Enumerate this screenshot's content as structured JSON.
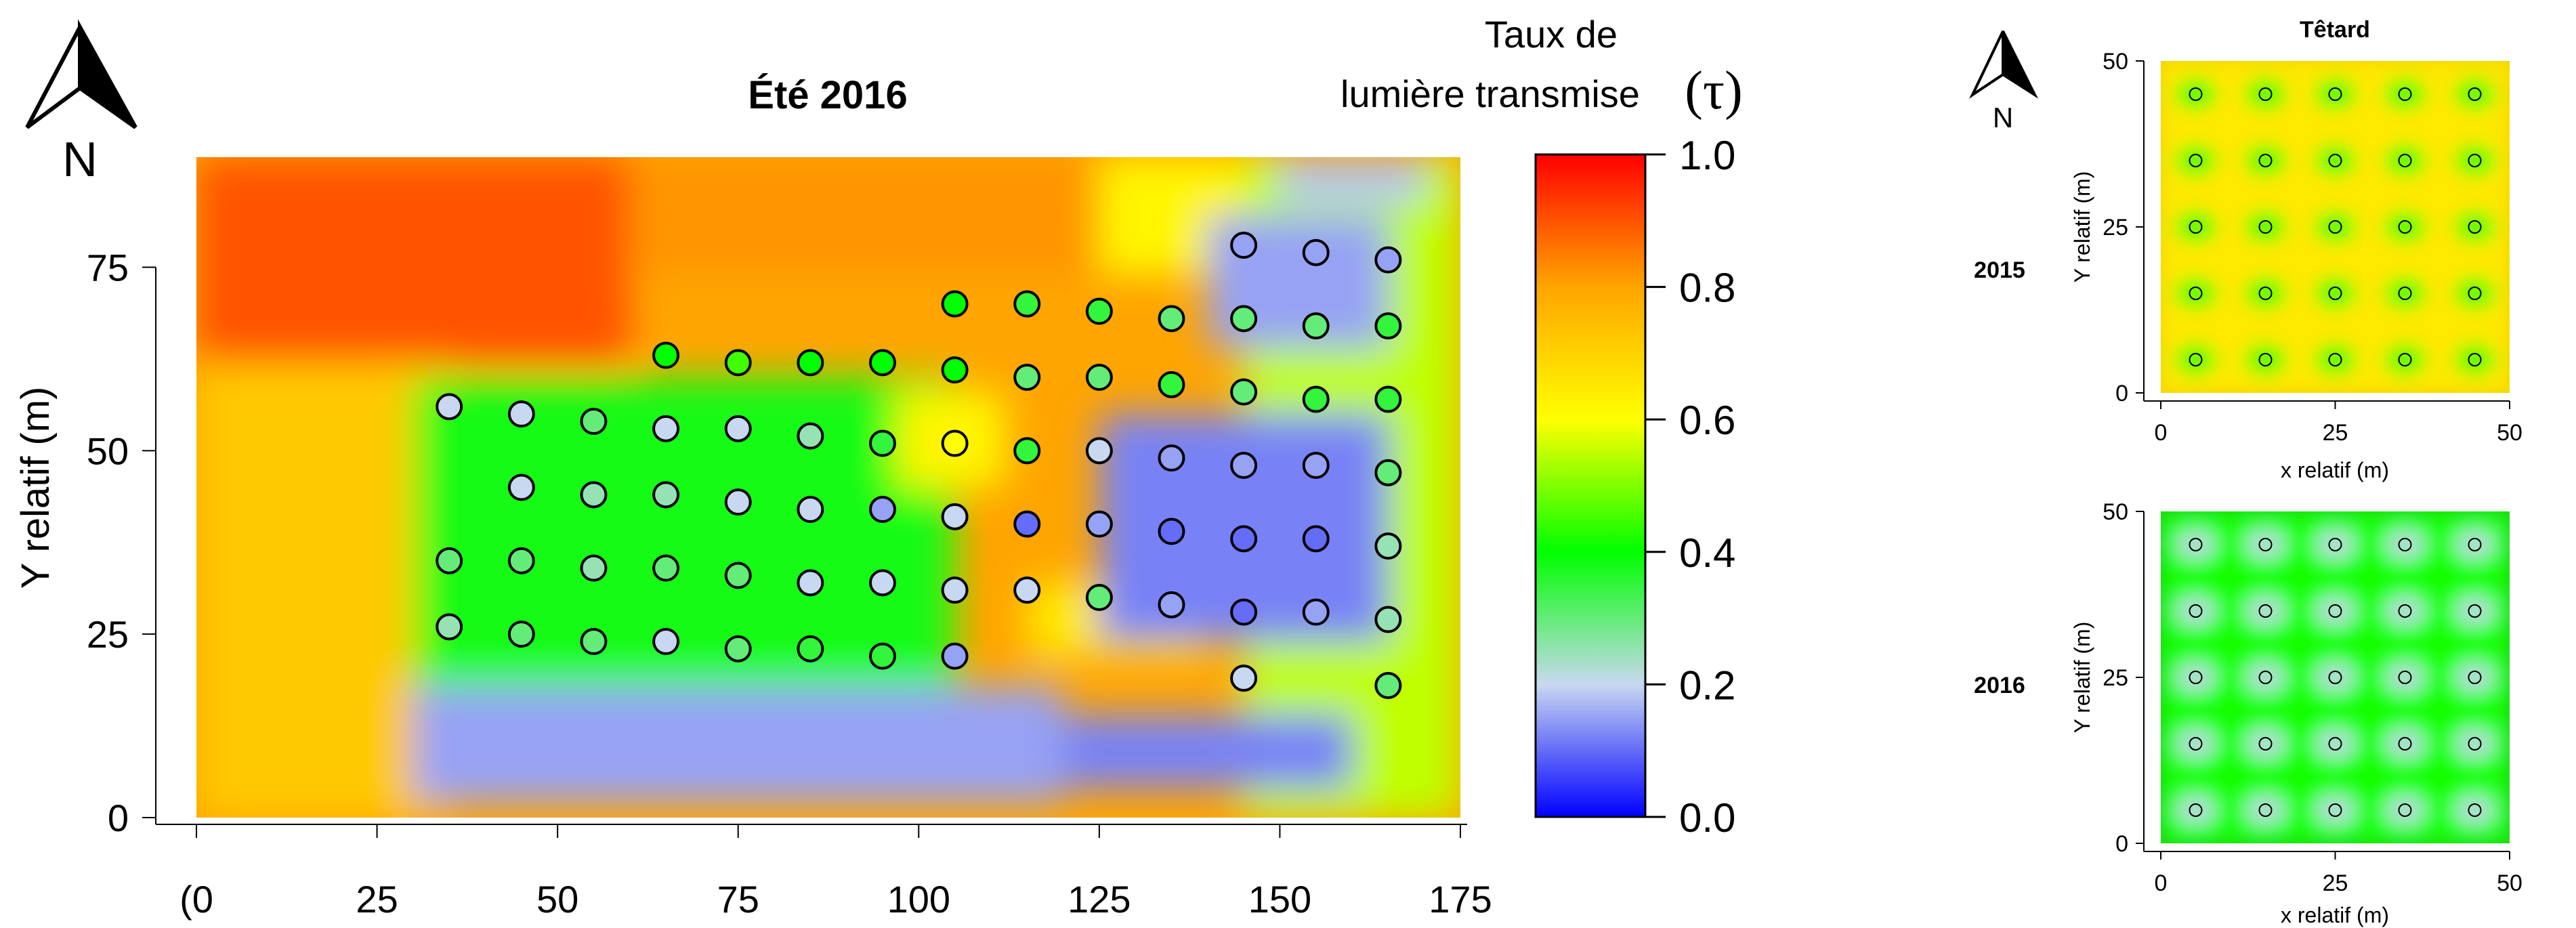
{
  "main": {
    "title": "Été 2016",
    "north_label": "N"
  },
  "colorbar": {
    "title_line1": "Taux de",
    "title_line2": "lumière transmise",
    "symbol": "(τ)",
    "ticks": [
      "0.0",
      "0.2",
      "0.4",
      "0.6",
      "0.8",
      "1.0"
    ],
    "gradient_stops": [
      {
        "value": 0.0,
        "color": "#0000ff"
      },
      {
        "value": 0.2,
        "color": "#c8d8f0"
      },
      {
        "value": 0.4,
        "color": "#00ff00"
      },
      {
        "value": 0.6,
        "color": "#ffff00"
      },
      {
        "value": 0.8,
        "color": "#ffa500"
      },
      {
        "value": 1.0,
        "color": "#ff0000"
      }
    ]
  },
  "side": {
    "north_label": "N",
    "panel_title": "Têtard",
    "row_labels": [
      "2015",
      "2016"
    ]
  },
  "chart_data": [
    {
      "type": "heatmap",
      "title": "Été 2016",
      "xlabel": "",
      "ylabel": "Y relatif (m)",
      "xlim": [
        0,
        175
      ],
      "ylim": [
        0,
        90
      ],
      "x_ticks": [
        "(0",
        "25",
        "50",
        "75",
        "100",
        "125",
        "150",
        "175"
      ],
      "x_tick_values": [
        0,
        25,
        50,
        75,
        100,
        125,
        150,
        175
      ],
      "y_ticks": [
        "0",
        "25",
        "50",
        "75"
      ],
      "y_tick_values": [
        0,
        25,
        50,
        75
      ],
      "color_scale": {
        "min": 0.0,
        "max": 1.0,
        "label": "Taux de lumière transmise (τ)"
      },
      "zones": [
        {
          "x": [
            0,
            60
          ],
          "y": [
            62,
            90
          ],
          "tau": 0.9
        },
        {
          "x": [
            60,
            125
          ],
          "y": [
            74,
            90
          ],
          "tau": 0.82
        },
        {
          "x": [
            125,
            145
          ],
          "y": [
            74,
            90
          ],
          "tau": 0.62
        },
        {
          "x": [
            145,
            175
          ],
          "y": [
            0,
            90
          ],
          "tau": 0.55
        },
        {
          "x": [
            0,
            35
          ],
          "y": [
            0,
            62
          ],
          "tau": 0.72
        },
        {
          "x": [
            30,
            105
          ],
          "y": [
            14,
            60
          ],
          "tau": 0.38
        },
        {
          "x": [
            97,
            112
          ],
          "y": [
            45,
            58
          ],
          "tau": 0.62
        },
        {
          "x": [
            115,
            140
          ],
          "y": [
            22,
            32
          ],
          "tau": 0.65
        },
        {
          "x": [
            125,
            165
          ],
          "y": [
            24,
            55
          ],
          "tau": 0.12
        },
        {
          "x": [
            140,
            165
          ],
          "y": [
            64,
            82
          ],
          "tau": 0.15
        },
        {
          "x": [
            150,
            170
          ],
          "y": [
            84,
            90
          ],
          "tau": 0.18
        },
        {
          "x": [
            30,
            120
          ],
          "y": [
            2,
            18
          ],
          "tau": 0.15
        },
        {
          "x": [
            120,
            160
          ],
          "y": [
            4,
            14
          ],
          "tau": 0.12
        }
      ],
      "trees": [
        {
          "x": 35,
          "y": 56,
          "tau": 0.2
        },
        {
          "x": 45,
          "y": 55,
          "tau": 0.2
        },
        {
          "x": 55,
          "y": 54,
          "tau": 0.3
        },
        {
          "x": 65,
          "y": 53,
          "tau": 0.2
        },
        {
          "x": 75,
          "y": 53,
          "tau": 0.2
        },
        {
          "x": 85,
          "y": 52,
          "tau": 0.25
        },
        {
          "x": 95,
          "y": 51,
          "tau": 0.35
        },
        {
          "x": 105,
          "y": 51,
          "tau": 0.6
        },
        {
          "x": 115,
          "y": 50,
          "tau": 0.35
        },
        {
          "x": 125,
          "y": 50,
          "tau": 0.2
        },
        {
          "x": 135,
          "y": 49,
          "tau": 0.15
        },
        {
          "x": 145,
          "y": 48,
          "tau": 0.15
        },
        {
          "x": 155,
          "y": 48,
          "tau": 0.15
        },
        {
          "x": 165,
          "y": 47,
          "tau": 0.3
        },
        {
          "x": 45,
          "y": 45,
          "tau": 0.2
        },
        {
          "x": 55,
          "y": 44,
          "tau": 0.25
        },
        {
          "x": 65,
          "y": 44,
          "tau": 0.25
        },
        {
          "x": 75,
          "y": 43,
          "tau": 0.2
        },
        {
          "x": 85,
          "y": 42,
          "tau": 0.2
        },
        {
          "x": 95,
          "y": 42,
          "tau": 0.15
        },
        {
          "x": 105,
          "y": 41,
          "tau": 0.2
        },
        {
          "x": 115,
          "y": 40,
          "tau": 0.1
        },
        {
          "x": 125,
          "y": 40,
          "tau": 0.15
        },
        {
          "x": 135,
          "y": 39,
          "tau": 0.1
        },
        {
          "x": 145,
          "y": 38,
          "tau": 0.1
        },
        {
          "x": 155,
          "y": 38,
          "tau": 0.1
        },
        {
          "x": 165,
          "y": 37,
          "tau": 0.25
        },
        {
          "x": 35,
          "y": 35,
          "tau": 0.3
        },
        {
          "x": 45,
          "y": 35,
          "tau": 0.3
        },
        {
          "x": 55,
          "y": 34,
          "tau": 0.25
        },
        {
          "x": 65,
          "y": 34,
          "tau": 0.3
        },
        {
          "x": 75,
          "y": 33,
          "tau": 0.3
        },
        {
          "x": 85,
          "y": 32,
          "tau": 0.2
        },
        {
          "x": 95,
          "y": 32,
          "tau": 0.2
        },
        {
          "x": 105,
          "y": 31,
          "tau": 0.2
        },
        {
          "x": 115,
          "y": 31,
          "tau": 0.2
        },
        {
          "x": 125,
          "y": 30,
          "tau": 0.3
        },
        {
          "x": 135,
          "y": 29,
          "tau": 0.15
        },
        {
          "x": 145,
          "y": 28,
          "tau": 0.1
        },
        {
          "x": 155,
          "y": 28,
          "tau": 0.15
        },
        {
          "x": 165,
          "y": 27,
          "tau": 0.25
        },
        {
          "x": 35,
          "y": 26,
          "tau": 0.25
        },
        {
          "x": 45,
          "y": 25,
          "tau": 0.3
        },
        {
          "x": 55,
          "y": 24,
          "tau": 0.3
        },
        {
          "x": 65,
          "y": 24,
          "tau": 0.2
        },
        {
          "x": 75,
          "y": 23,
          "tau": 0.3
        },
        {
          "x": 85,
          "y": 23,
          "tau": 0.35
        },
        {
          "x": 95,
          "y": 22,
          "tau": 0.35
        },
        {
          "x": 105,
          "y": 22,
          "tau": 0.15
        },
        {
          "x": 145,
          "y": 19,
          "tau": 0.2
        },
        {
          "x": 165,
          "y": 18,
          "tau": 0.3
        },
        {
          "x": 65,
          "y": 63,
          "tau": 0.4
        },
        {
          "x": 75,
          "y": 62,
          "tau": 0.45
        },
        {
          "x": 85,
          "y": 62,
          "tau": 0.4
        },
        {
          "x": 95,
          "y": 62,
          "tau": 0.4
        },
        {
          "x": 105,
          "y": 61,
          "tau": 0.4
        },
        {
          "x": 115,
          "y": 60,
          "tau": 0.3
        },
        {
          "x": 125,
          "y": 60,
          "tau": 0.3
        },
        {
          "x": 135,
          "y": 59,
          "tau": 0.35
        },
        {
          "x": 145,
          "y": 58,
          "tau": 0.3
        },
        {
          "x": 155,
          "y": 57,
          "tau": 0.35
        },
        {
          "x": 165,
          "y": 57,
          "tau": 0.35
        },
        {
          "x": 105,
          "y": 70,
          "tau": 0.4
        },
        {
          "x": 115,
          "y": 70,
          "tau": 0.35
        },
        {
          "x": 125,
          "y": 69,
          "tau": 0.35
        },
        {
          "x": 135,
          "y": 68,
          "tau": 0.3
        },
        {
          "x": 145,
          "y": 68,
          "tau": 0.3
        },
        {
          "x": 155,
          "y": 67,
          "tau": 0.3
        },
        {
          "x": 165,
          "y": 67,
          "tau": 0.35
        },
        {
          "x": 145,
          "y": 78,
          "tau": 0.15
        },
        {
          "x": 155,
          "y": 77,
          "tau": 0.15
        },
        {
          "x": 165,
          "y": 76,
          "tau": 0.15
        }
      ]
    },
    {
      "type": "heatmap",
      "title": "Têtard",
      "row_label": "2015",
      "xlabel": "x relatif (m)",
      "ylabel": "Y relatif (m)",
      "xlim": [
        0,
        50
      ],
      "ylim": [
        0,
        50
      ],
      "x_ticks": [
        "0",
        "25",
        "50"
      ],
      "y_ticks": [
        "0",
        "25",
        "50"
      ],
      "tick_values": [
        0,
        25,
        50
      ],
      "background_tau": 0.65,
      "tree_tau": 0.4,
      "tree_x": [
        5,
        15,
        25,
        35,
        45
      ],
      "tree_y": [
        5,
        15,
        25,
        35,
        45
      ]
    },
    {
      "type": "heatmap",
      "title": "",
      "row_label": "2016",
      "xlabel": "x relatif (m)",
      "ylabel": "Y relatif (m)",
      "xlim": [
        0,
        50
      ],
      "ylim": [
        0,
        50
      ],
      "x_ticks": [
        "0",
        "25",
        "50"
      ],
      "y_ticks": [
        "0",
        "25",
        "50"
      ],
      "tick_values": [
        0,
        25,
        50
      ],
      "background_tau": 0.42,
      "tree_tau": 0.22,
      "tree_x": [
        5,
        15,
        25,
        35,
        45
      ],
      "tree_y": [
        5,
        15,
        25,
        35,
        45
      ]
    }
  ]
}
